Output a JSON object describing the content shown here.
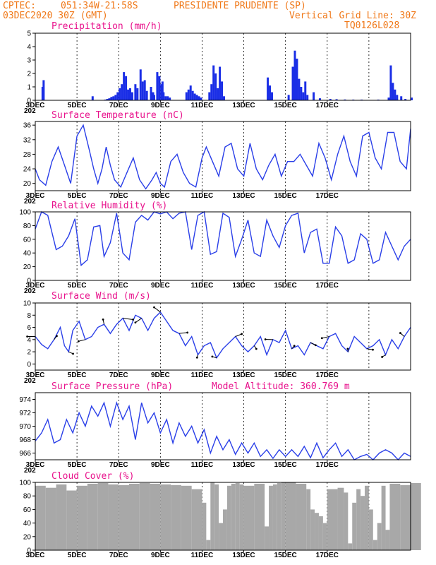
{
  "header": {
    "source": "CPTEC:",
    "coords": "051:34W-21:58S",
    "station": "PRESIDENTE PRUDENTE (SP)",
    "init": "03DEC2020 30Z (GMT)",
    "grid_note": "Vertical Grid Line: 30Z",
    "model_code": "TQ0126L028"
  },
  "x_ticks": [
    "3DEC",
    "5DEC",
    "7DEC",
    "9DEC",
    "11DEC",
    "13DEC",
    "15DEC",
    "17DEC"
  ],
  "x_year_fragment": "202",
  "model_altitude": "Model Altitude: 360.769 m",
  "colors": {
    "line": "#2a3fe8",
    "bar": "#1a2ee6",
    "cloud": "#a8a8a8",
    "header": "#f07818",
    "title": "#e8128c"
  },
  "chart_data": [
    {
      "type": "bar",
      "title": "Precipitation (mm/h)",
      "ylim": [
        0,
        5
      ],
      "yticks": [
        0,
        1,
        2,
        3,
        4,
        5
      ],
      "x": [
        0.3,
        0.35,
        2.7,
        3.3,
        3.4,
        3.5,
        3.6,
        3.7,
        3.8,
        3.9,
        4.0,
        4.1,
        4.2,
        4.3,
        4.4,
        4.5,
        4.6,
        4.75,
        4.85,
        5.0,
        5.1,
        5.2,
        5.3,
        5.5,
        5.6,
        5.65,
        5.8,
        5.9,
        6.0,
        6.05,
        6.1,
        6.2,
        6.3,
        6.4,
        7.2,
        7.3,
        7.4,
        7.5,
        7.6,
        7.7,
        7.8,
        7.9,
        8.3,
        8.4,
        8.5,
        8.6,
        8.7,
        8.8,
        8.9,
        9.0,
        11.1,
        11.2,
        11.3,
        12.1,
        12.3,
        12.4,
        12.5,
        12.6,
        12.7,
        12.8,
        12.9,
        13.0,
        13.3,
        13.6,
        14.1,
        14.4,
        14.8,
        15.2,
        15.6,
        16.4,
        16.9,
        17.0,
        17.1,
        17.2,
        17.3,
        17.5,
        17.7,
        18.0
      ],
      "values": [
        1.0,
        1.5,
        0.3,
        0.05,
        0.1,
        0.15,
        0.25,
        0.3,
        0.4,
        0.6,
        0.9,
        1.2,
        2.1,
        1.8,
        0.8,
        0.9,
        0.6,
        1.2,
        0.9,
        2.3,
        1.4,
        1.5,
        0.7,
        1.0,
        0.6,
        0.4,
        2.1,
        1.8,
        1.2,
        1.4,
        0.6,
        0.3,
        0.3,
        0.2,
        0.6,
        0.8,
        1.1,
        0.7,
        0.5,
        0.4,
        0.3,
        0.2,
        0.6,
        1.2,
        2.6,
        2.0,
        0.9,
        2.5,
        1.4,
        0.3,
        1.7,
        1.1,
        0.6,
        0.4,
        2.5,
        3.7,
        3.1,
        1.6,
        1.0,
        0.6,
        1.4,
        0.4,
        0.6,
        0.15,
        0.1,
        0.08,
        0.06,
        0.05,
        0.05,
        0.05,
        0.2,
        2.6,
        1.3,
        0.8,
        0.4,
        0.3,
        0.1,
        0.2
      ]
    },
    {
      "type": "line",
      "title": "Surface Temperature (nC)",
      "ylim": [
        18,
        37
      ],
      "yticks": [
        20,
        24,
        28,
        32,
        36
      ],
      "x": [
        0,
        0.2,
        0.5,
        0.8,
        1.1,
        1.4,
        1.7,
        2.0,
        2.3,
        2.6,
        2.8,
        3.0,
        3.2,
        3.4,
        3.6,
        3.8,
        4.1,
        4.4,
        4.7,
        5.0,
        5.3,
        5.6,
        5.8,
        6.0,
        6.2,
        6.5,
        6.8,
        7.1,
        7.4,
        7.7,
        8.0,
        8.2,
        8.5,
        8.8,
        9.1,
        9.4,
        9.7,
        10.0,
        10.3,
        10.6,
        10.9,
        11.2,
        11.5,
        11.8,
        12.1,
        12.4,
        12.7,
        13.0,
        13.3,
        13.6,
        13.9,
        14.2,
        14.5,
        14.8,
        15.1,
        15.4,
        15.7,
        16.0,
        16.3,
        16.6,
        16.9,
        17.2,
        17.5,
        17.8,
        18.0
      ],
      "values": [
        24,
        21,
        19.5,
        26,
        30,
        25,
        20,
        33,
        36,
        29,
        24,
        20,
        24,
        30,
        25,
        21,
        19,
        23,
        27,
        21,
        18.5,
        21,
        23,
        20,
        19,
        26,
        28,
        23,
        20,
        19,
        27,
        30,
        26,
        22,
        30,
        31,
        24,
        22,
        31,
        24,
        21,
        25,
        28,
        22,
        26,
        26,
        28,
        25,
        22,
        31,
        27,
        21,
        28,
        33,
        26,
        22,
        33,
        34,
        27,
        24,
        34,
        34,
        26,
        24,
        35
      ]
    },
    {
      "type": "line",
      "title": "Relative Humidity (%)",
      "ylim": [
        0,
        100
      ],
      "yticks": [
        0,
        20,
        40,
        60,
        80,
        100
      ],
      "x": [
        0,
        0.3,
        0.6,
        1.0,
        1.3,
        1.6,
        1.9,
        2.2,
        2.5,
        2.8,
        3.1,
        3.3,
        3.6,
        3.9,
        4.2,
        4.5,
        4.8,
        5.1,
        5.4,
        5.7,
        6.0,
        6.3,
        6.6,
        6.9,
        7.2,
        7.5,
        7.8,
        8.1,
        8.4,
        8.7,
        9.0,
        9.3,
        9.6,
        9.9,
        10.2,
        10.5,
        10.8,
        11.1,
        11.4,
        11.7,
        12.0,
        12.3,
        12.6,
        12.9,
        13.2,
        13.5,
        13.8,
        14.1,
        14.4,
        14.7,
        15.0,
        15.3,
        15.6,
        15.9,
        16.2,
        16.5,
        16.8,
        17.1,
        17.4,
        17.7,
        18.0
      ],
      "values": [
        75,
        100,
        95,
        45,
        50,
        65,
        90,
        22,
        30,
        78,
        80,
        35,
        55,
        98,
        40,
        30,
        85,
        95,
        88,
        100,
        97,
        100,
        90,
        98,
        100,
        45,
        95,
        100,
        38,
        42,
        98,
        92,
        35,
        60,
        88,
        40,
        35,
        88,
        65,
        48,
        80,
        95,
        98,
        40,
        70,
        75,
        25,
        25,
        78,
        65,
        25,
        30,
        68,
        60,
        25,
        30,
        70,
        50,
        30,
        50,
        60
      ]
    },
    {
      "type": "line",
      "title": "Surface Wind (m/s)",
      "ylim": [
        -1,
        10
      ],
      "yticks": [
        0,
        2,
        4,
        6,
        8,
        10
      ],
      "x": [
        0,
        0.3,
        0.6,
        0.9,
        1.2,
        1.4,
        1.6,
        1.8,
        2.1,
        2.4,
        2.7,
        3.0,
        3.3,
        3.6,
        3.9,
        4.2,
        4.5,
        4.8,
        5.1,
        5.4,
        5.7,
        6.0,
        6.3,
        6.6,
        6.9,
        7.2,
        7.5,
        7.8,
        8.1,
        8.4,
        8.7,
        9.0,
        9.3,
        9.6,
        9.9,
        10.2,
        10.5,
        10.8,
        11.1,
        11.4,
        11.7,
        12.0,
        12.3,
        12.6,
        12.9,
        13.2,
        13.5,
        13.8,
        14.1,
        14.4,
        14.7,
        15.0,
        15.3,
        15.6,
        15.9,
        16.2,
        16.5,
        16.8,
        17.1,
        17.4,
        17.7,
        18.0
      ],
      "values": [
        4.5,
        3.2,
        2.5,
        4.0,
        6.0,
        3.0,
        2.0,
        5.5,
        7.0,
        4.0,
        4.5,
        6.0,
        6.5,
        5.0,
        6.5,
        7.5,
        5.5,
        8.0,
        7.5,
        5.5,
        7.5,
        8.5,
        7.0,
        5.5,
        5.0,
        3.0,
        4.5,
        1.5,
        3.0,
        3.5,
        1.0,
        2.5,
        3.5,
        4.5,
        3.0,
        2.0,
        3.0,
        4.5,
        1.5,
        4.0,
        3.5,
        5.5,
        2.5,
        3.0,
        1.5,
        3.5,
        3.0,
        2.5,
        4.5,
        5.0,
        3.0,
        2.0,
        4.5,
        3.5,
        2.5,
        3.0,
        4.0,
        1.5,
        4.0,
        2.5,
        4.5,
        6.0
      ]
    },
    {
      "type": "line",
      "title": "Surface Pressure (hPa)",
      "ylim": [
        965,
        975
      ],
      "yticks": [
        966,
        968,
        970,
        972,
        974
      ],
      "x": [
        0,
        0.3,
        0.6,
        0.9,
        1.2,
        1.5,
        1.8,
        2.1,
        2.4,
        2.7,
        3.0,
        3.3,
        3.6,
        3.9,
        4.2,
        4.5,
        4.8,
        5.1,
        5.4,
        5.7,
        6.0,
        6.3,
        6.6,
        6.9,
        7.2,
        7.5,
        7.8,
        8.1,
        8.4,
        8.7,
        9.0,
        9.3,
        9.6,
        9.9,
        10.2,
        10.5,
        10.8,
        11.1,
        11.4,
        11.7,
        12.0,
        12.3,
        12.6,
        12.9,
        13.2,
        13.5,
        13.8,
        14.1,
        14.4,
        14.7,
        15.0,
        15.3,
        15.6,
        15.9,
        16.2,
        16.5,
        16.8,
        17.1,
        17.4,
        17.7,
        18.0
      ],
      "values": [
        967.8,
        969,
        971,
        967.5,
        968,
        971,
        969,
        972,
        970,
        973,
        971.5,
        973.5,
        970,
        973.5,
        971,
        973,
        968,
        973.5,
        970.5,
        972,
        969,
        971,
        967.5,
        970.5,
        968.5,
        970,
        967.5,
        969.5,
        966,
        968.5,
        966.5,
        968,
        965.8,
        967.5,
        966,
        967.5,
        965.5,
        966.5,
        965.2,
        966.5,
        965.5,
        966.5,
        965.5,
        967,
        965.3,
        967.5,
        965.3,
        966.5,
        967.5,
        965.5,
        966.5,
        964.8,
        965.5,
        965.8,
        964.5,
        966,
        966.5,
        966,
        964.8,
        966,
        965.5
      ]
    },
    {
      "type": "bar",
      "title": "Cloud Cover (%)",
      "ylim": [
        0,
        100
      ],
      "yticks": [
        0,
        20,
        40,
        60,
        80,
        100
      ],
      "x": [
        0,
        0.5,
        1.0,
        1.5,
        2.0,
        2.5,
        3.0,
        3.5,
        4.0,
        4.5,
        5.0,
        5.5,
        6.0,
        6.5,
        7.0,
        7.5,
        8.0,
        8.2,
        8.4,
        8.6,
        8.8,
        9.0,
        9.2,
        9.4,
        9.6,
        9.8,
        10.0,
        10.5,
        11.0,
        11.2,
        11.4,
        11.6,
        11.8,
        12.0,
        12.5,
        13.0,
        13.2,
        13.4,
        13.6,
        13.8,
        14.0,
        14.5,
        14.8,
        15.0,
        15.2,
        15.4,
        15.6,
        15.8,
        16.0,
        16.2,
        16.4,
        16.6,
        16.8,
        17.0,
        17.5,
        18.0
      ],
      "values": [
        95,
        92,
        97,
        88,
        95,
        98,
        99,
        97,
        96,
        98,
        99,
        98,
        97,
        96,
        95,
        90,
        70,
        15,
        100,
        97,
        40,
        60,
        95,
        98,
        99,
        97,
        95,
        98,
        35,
        95,
        97,
        99,
        100,
        100,
        98,
        90,
        60,
        55,
        50,
        40,
        90,
        92,
        85,
        10,
        70,
        90,
        80,
        95,
        60,
        15,
        40,
        95,
        30,
        98,
        96,
        99
      ]
    }
  ]
}
